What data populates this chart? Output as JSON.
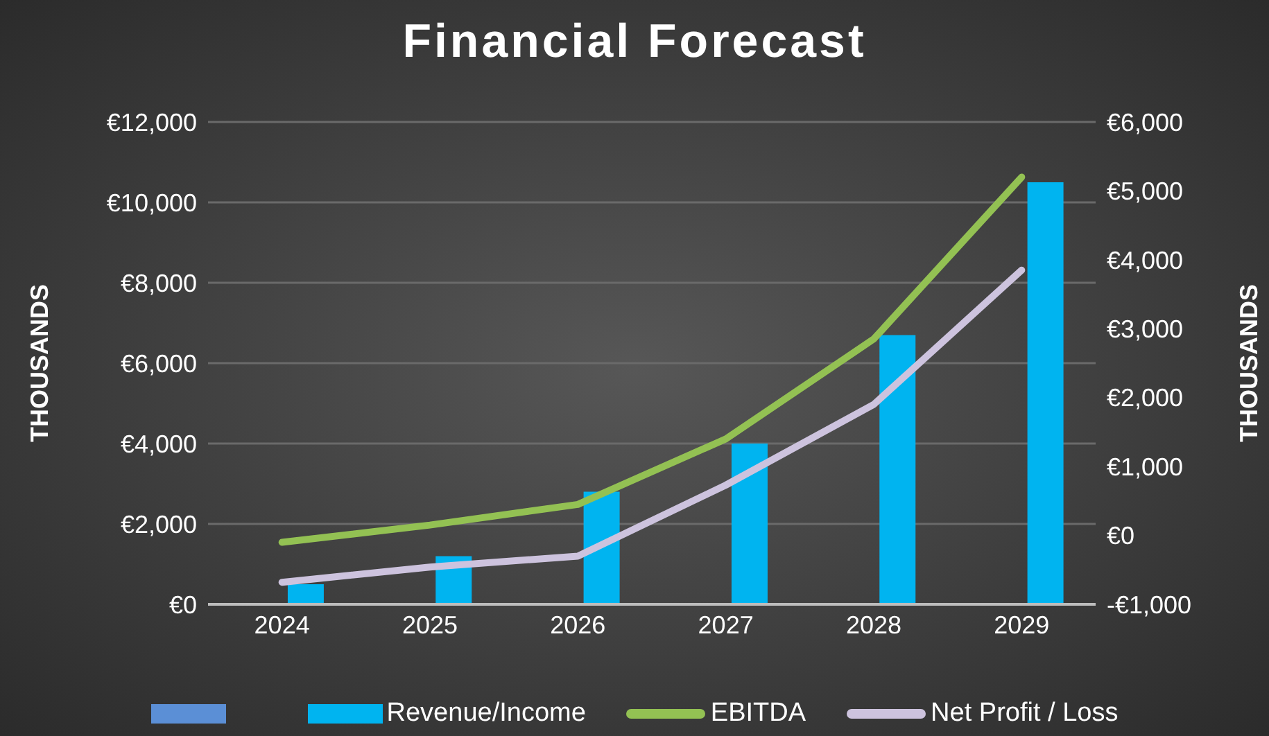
{
  "chart_data": {
    "type": "bar",
    "title": "Financial Forecast",
    "ylabel": "THOUSANDS",
    "y2label": "THOUSANDS",
    "categories": [
      "2024",
      "2025",
      "2026",
      "2027",
      "2028",
      "2029"
    ],
    "series": [
      {
        "color": "#5b8fd6",
        "values": [
          null,
          null,
          null,
          null,
          null,
          null
        ]
      },
      {
        "name": "Revenue/Income",
        "color": "#00b4f0",
        "values": [
          500,
          1200,
          2800,
          4000,
          6700,
          10500
        ]
      },
      {
        "name": "EBITDA",
        "type": "line",
        "axis": "y2",
        "color": "#93c153",
        "values": [
          -100,
          150,
          450,
          1400,
          2850,
          5200
        ]
      },
      {
        "name": "Net Profit / Loss",
        "type": "line",
        "axis": "y2",
        "color": "#cdc3de",
        "values": [
          -680,
          -460,
          -300,
          730,
          1900,
          3850
        ]
      }
    ],
    "ylim": [
      0,
      12000
    ],
    "yticks": [
      {
        "value": 0,
        "label": "€0"
      },
      {
        "value": 2000,
        "label": "€2,000"
      },
      {
        "value": 4000,
        "label": "€4,000"
      },
      {
        "value": 6000,
        "label": "€6,000"
      },
      {
        "value": 8000,
        "label": "€8,000"
      },
      {
        "value": 10000,
        "label": "€10,000"
      },
      {
        "value": 12000,
        "label": "€12,000"
      }
    ],
    "y2lim": [
      -1000,
      6000
    ],
    "y2ticks": [
      {
        "value": -1000,
        "label": "-€1,000"
      },
      {
        "value": 0,
        "label": "€0"
      },
      {
        "value": 1000,
        "label": "€1,000"
      },
      {
        "value": 2000,
        "label": "€2,000"
      },
      {
        "value": 3000,
        "label": "€3,000"
      },
      {
        "value": 4000,
        "label": "€4,000"
      },
      {
        "value": 5000,
        "label": "€5,000"
      },
      {
        "value": 6000,
        "label": "€6,000"
      }
    ],
    "grid": "y",
    "legend": "bottom",
    "line_style": "solid"
  }
}
